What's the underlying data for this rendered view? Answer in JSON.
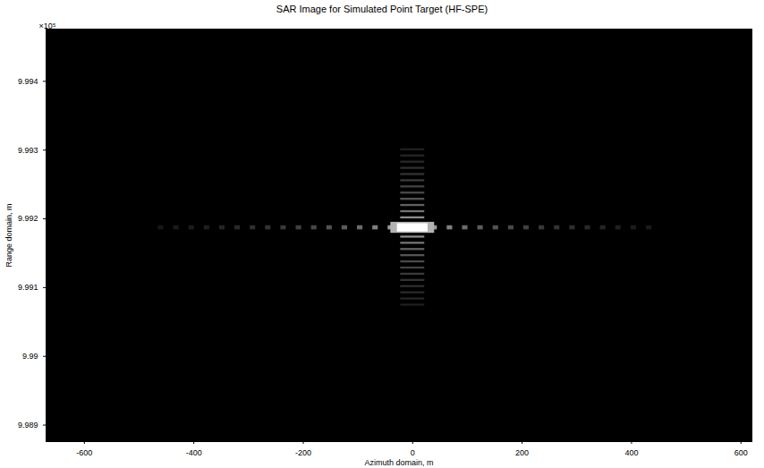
{
  "chart_data": {
    "type": "heatmap",
    "title": "SAR Image for Simulated Point Target (HF-SPE)",
    "x_label": "Azimuth domain, m",
    "y_label": "Range domain, m",
    "y_axis_exponent": "×10⁵",
    "xlim": [
      -670,
      620
    ],
    "xticks": [
      -600,
      -400,
      -200,
      0,
      200,
      400,
      600
    ],
    "ylim": [
      9.98876,
      9.99476
    ],
    "yticks": [
      9.989,
      9.99,
      9.991,
      9.992,
      9.993,
      9.994
    ],
    "zlim": [
      0,
      1
    ],
    "color": [
      "#000000",
      "#ffffff"
    ],
    "grid": false,
    "cells": [
      {
        "x1": -465,
        "x2": -455,
        "y1": 9.99184,
        "y2": 9.9919,
        "value": 0.09
      },
      {
        "x1": -437,
        "x2": -427,
        "y1": 9.99184,
        "y2": 9.9919,
        "value": 0.1
      },
      {
        "x1": -409,
        "x2": -399,
        "y1": 9.99184,
        "y2": 9.9919,
        "value": 0.11
      },
      {
        "x1": -381,
        "x2": -371,
        "y1": 9.99184,
        "y2": 9.9919,
        "value": 0.12
      },
      {
        "x1": -353,
        "x2": -343,
        "y1": 9.99184,
        "y2": 9.9919,
        "value": 0.14
      },
      {
        "x1": -325,
        "x2": -315,
        "y1": 9.99184,
        "y2": 9.9919,
        "value": 0.16
      },
      {
        "x1": -297,
        "x2": -287,
        "y1": 9.99184,
        "y2": 9.9919,
        "value": 0.18
      },
      {
        "x1": -269,
        "x2": -259,
        "y1": 9.99184,
        "y2": 9.9919,
        "value": 0.2
      },
      {
        "x1": -241,
        "x2": -231,
        "y1": 9.99184,
        "y2": 9.9919,
        "value": 0.22
      },
      {
        "x1": -213,
        "x2": -203,
        "y1": 9.99184,
        "y2": 9.9919,
        "value": 0.25
      },
      {
        "x1": -185,
        "x2": -175,
        "y1": 9.99184,
        "y2": 9.9919,
        "value": 0.28
      },
      {
        "x1": -157,
        "x2": -147,
        "y1": 9.99184,
        "y2": 9.9919,
        "value": 0.32
      },
      {
        "x1": -129,
        "x2": -119,
        "y1": 9.99184,
        "y2": 9.9919,
        "value": 0.36
      },
      {
        "x1": -101,
        "x2": -91,
        "y1": 9.99184,
        "y2": 9.9919,
        "value": 0.42
      },
      {
        "x1": -73,
        "x2": -63,
        "y1": 9.99184,
        "y2": 9.9919,
        "value": 0.5
      },
      {
        "x1": -45,
        "x2": -35,
        "y1": 9.99184,
        "y2": 9.9919,
        "value": 0.6
      },
      {
        "x1": 35,
        "x2": 45,
        "y1": 9.99184,
        "y2": 9.9919,
        "value": 0.6
      },
      {
        "x1": 63,
        "x2": 73,
        "y1": 9.99184,
        "y2": 9.9919,
        "value": 0.5
      },
      {
        "x1": 91,
        "x2": 101,
        "y1": 9.99184,
        "y2": 9.9919,
        "value": 0.42
      },
      {
        "x1": 119,
        "x2": 129,
        "y1": 9.99184,
        "y2": 9.9919,
        "value": 0.36
      },
      {
        "x1": 147,
        "x2": 157,
        "y1": 9.99184,
        "y2": 9.9919,
        "value": 0.32
      },
      {
        "x1": 175,
        "x2": 185,
        "y1": 9.99184,
        "y2": 9.9919,
        "value": 0.28
      },
      {
        "x1": 203,
        "x2": 213,
        "y1": 9.99184,
        "y2": 9.9919,
        "value": 0.25
      },
      {
        "x1": 231,
        "x2": 241,
        "y1": 9.99184,
        "y2": 9.9919,
        "value": 0.22
      },
      {
        "x1": 259,
        "x2": 269,
        "y1": 9.99184,
        "y2": 9.9919,
        "value": 0.2
      },
      {
        "x1": 287,
        "x2": 297,
        "y1": 9.99184,
        "y2": 9.9919,
        "value": 0.18
      },
      {
        "x1": 315,
        "x2": 325,
        "y1": 9.99184,
        "y2": 9.9919,
        "value": 0.16
      },
      {
        "x1": 343,
        "x2": 353,
        "y1": 9.99184,
        "y2": 9.9919,
        "value": 0.14
      },
      {
        "x1": 371,
        "x2": 381,
        "y1": 9.99184,
        "y2": 9.9919,
        "value": 0.12
      },
      {
        "x1": 399,
        "x2": 409,
        "y1": 9.99184,
        "y2": 9.9919,
        "value": 0.11
      },
      {
        "x1": 427,
        "x2": 437,
        "y1": 9.99184,
        "y2": 9.9919,
        "value": 0.1
      },
      {
        "x1": -22,
        "x2": 22,
        "y1": 9.992,
        "y2": 9.99203,
        "value": 0.55
      },
      {
        "x1": -22,
        "x2": 22,
        "y1": 9.99209,
        "y2": 9.99212,
        "value": 0.45
      },
      {
        "x1": -22,
        "x2": 22,
        "y1": 9.99218,
        "y2": 9.99221,
        "value": 0.38
      },
      {
        "x1": -22,
        "x2": 22,
        "y1": 9.99227,
        "y2": 9.9923,
        "value": 0.33
      },
      {
        "x1": -22,
        "x2": 22,
        "y1": 9.99236,
        "y2": 9.99239,
        "value": 0.29
      },
      {
        "x1": -22,
        "x2": 22,
        "y1": 9.99245,
        "y2": 9.99248,
        "value": 0.26
      },
      {
        "x1": -22,
        "x2": 22,
        "y1": 9.99254,
        "y2": 9.99257,
        "value": 0.23
      },
      {
        "x1": -22,
        "x2": 22,
        "y1": 9.99263,
        "y2": 9.99266,
        "value": 0.2
      },
      {
        "x1": -22,
        "x2": 22,
        "y1": 9.99272,
        "y2": 9.99275,
        "value": 0.18
      },
      {
        "x1": -22,
        "x2": 22,
        "y1": 9.99281,
        "y2": 9.99284,
        "value": 0.16
      },
      {
        "x1": -22,
        "x2": 22,
        "y1": 9.9929,
        "y2": 9.99293,
        "value": 0.14
      },
      {
        "x1": -22,
        "x2": 22,
        "y1": 9.99299,
        "y2": 9.99302,
        "value": 0.12
      },
      {
        "x1": -22,
        "x2": 22,
        "y1": 9.99172,
        "y2": 9.99175,
        "value": 0.55
      },
      {
        "x1": -22,
        "x2": 22,
        "y1": 9.99163,
        "y2": 9.99166,
        "value": 0.45
      },
      {
        "x1": -22,
        "x2": 22,
        "y1": 9.99154,
        "y2": 9.99157,
        "value": 0.38
      },
      {
        "x1": -22,
        "x2": 22,
        "y1": 9.99145,
        "y2": 9.99148,
        "value": 0.33
      },
      {
        "x1": -22,
        "x2": 22,
        "y1": 9.99136,
        "y2": 9.99139,
        "value": 0.29
      },
      {
        "x1": -22,
        "x2": 22,
        "y1": 9.99127,
        "y2": 9.9913,
        "value": 0.26
      },
      {
        "x1": -22,
        "x2": 22,
        "y1": 9.99118,
        "y2": 9.99121,
        "value": 0.23
      },
      {
        "x1": -22,
        "x2": 22,
        "y1": 9.99109,
        "y2": 9.99112,
        "value": 0.2
      },
      {
        "x1": -22,
        "x2": 22,
        "y1": 9.991,
        "y2": 9.99103,
        "value": 0.18
      },
      {
        "x1": -22,
        "x2": 22,
        "y1": 9.99091,
        "y2": 9.99094,
        "value": 0.16
      },
      {
        "x1": -22,
        "x2": 22,
        "y1": 9.99082,
        "y2": 9.99085,
        "value": 0.14
      },
      {
        "x1": -22,
        "x2": 22,
        "y1": 9.99073,
        "y2": 9.99076,
        "value": 0.12
      },
      {
        "x1": -40,
        "x2": 40,
        "y1": 9.99179,
        "y2": 9.99195,
        "value": 0.7
      },
      {
        "x1": -28,
        "x2": 28,
        "y1": 9.99181,
        "y2": 9.99193,
        "value": 1
      }
    ]
  }
}
